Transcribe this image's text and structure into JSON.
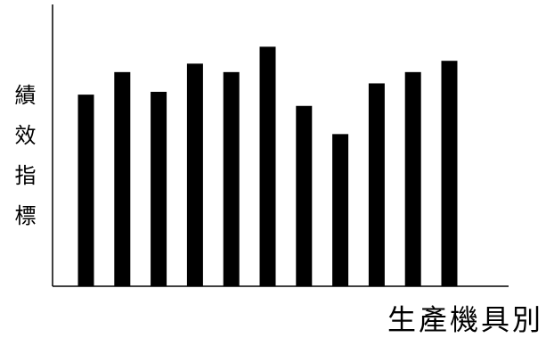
{
  "chart_data": {
    "type": "bar",
    "y_label": "績效指標",
    "x_label": "生產機具別",
    "categories": [
      null,
      null,
      null,
      null,
      null,
      null,
      null,
      null,
      null,
      null,
      null
    ],
    "values": [
      68,
      76,
      69,
      79,
      76,
      85,
      64,
      54,
      72,
      76,
      80
    ],
    "color": "#000000",
    "ylim": [
      0,
      100
    ]
  }
}
